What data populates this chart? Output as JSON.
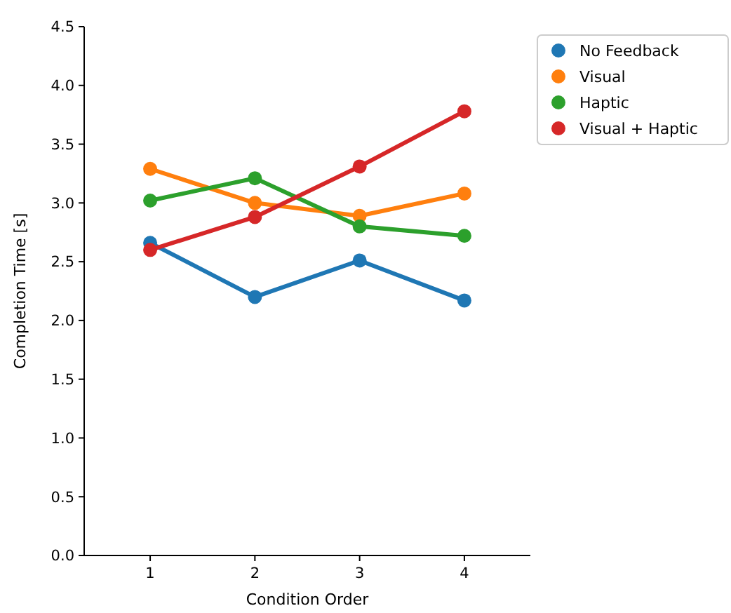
{
  "chart_data": {
    "type": "line",
    "xlabel": "Condition Order",
    "ylabel": "Completion Time [s]",
    "categories": [
      "1",
      "2",
      "3",
      "4"
    ],
    "ylim": [
      0,
      4.5
    ],
    "yticks": [
      {
        "value": 0,
        "label": "0.0"
      },
      {
        "value": 0.5,
        "label": "0.5"
      },
      {
        "value": 1,
        "label": "1.0"
      },
      {
        "value": 1.5,
        "label": "1.5"
      },
      {
        "value": 2,
        "label": "2.0"
      },
      {
        "value": 2.5,
        "label": "2.5"
      },
      {
        "value": 3,
        "label": "3.0"
      },
      {
        "value": 3.5,
        "label": "3.5"
      },
      {
        "value": 4,
        "label": "4.0"
      },
      {
        "value": 4.5,
        "label": "4.5"
      }
    ],
    "marker": "circle",
    "legend": "top right",
    "grid": false,
    "series": [
      {
        "name": "No Feedback",
        "color": "#1f77b4",
        "values": [
          2.66,
          2.2,
          2.51,
          2.17
        ]
      },
      {
        "name": "Visual",
        "color": "#ff7f0e",
        "values": [
          3.29,
          3.0,
          2.89,
          3.08
        ]
      },
      {
        "name": "Haptic",
        "color": "#2ca02c",
        "values": [
          3.02,
          3.21,
          2.8,
          2.72
        ]
      },
      {
        "name": "Visual + Haptic",
        "color": "#d62728",
        "values": [
          2.6,
          2.88,
          3.31,
          3.78
        ]
      }
    ]
  }
}
